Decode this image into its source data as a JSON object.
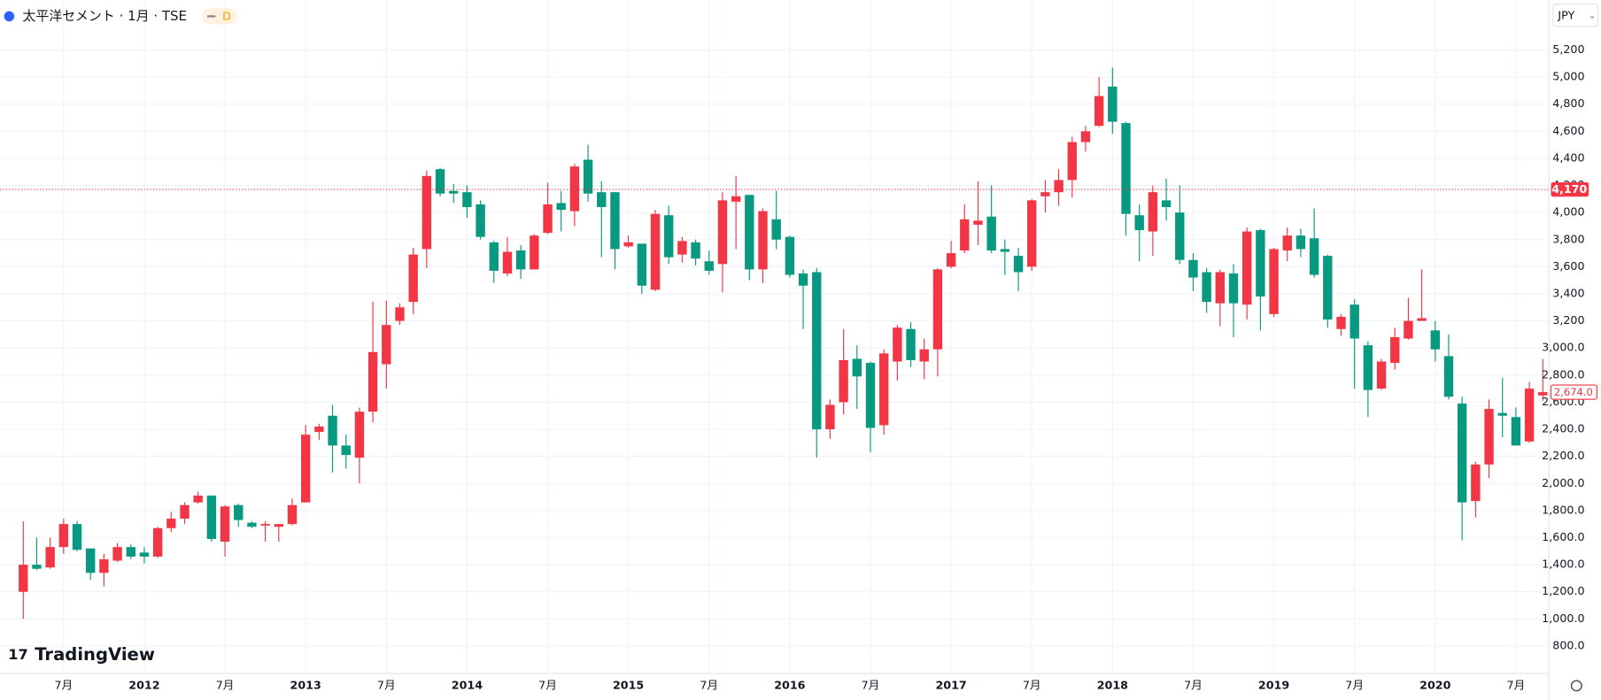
{
  "chart_data": {
    "type": "candlestick",
    "title": "太平洋セメント · 1月 · TSE",
    "badge": "D",
    "currency": "JPY",
    "brand": "TradingView",
    "up_color": "#f23645",
    "down_color": "#089981",
    "x": [
      "2011-04",
      "2011-05",
      "2011-06",
      "2011-07",
      "2011-08",
      "2011-09",
      "2011-10",
      "2011-11",
      "2011-12",
      "2012-01",
      "2012-02",
      "2012-03",
      "2012-04",
      "2012-05",
      "2012-06",
      "2012-07",
      "2012-08",
      "2012-09",
      "2012-10",
      "2012-11",
      "2012-12",
      "2013-01",
      "2013-02",
      "2013-03",
      "2013-04",
      "2013-05",
      "2013-06",
      "2013-07",
      "2013-08",
      "2013-09",
      "2013-10",
      "2013-11",
      "2013-12",
      "2014-01",
      "2014-02",
      "2014-03",
      "2014-04",
      "2014-05",
      "2014-06",
      "2014-07",
      "2014-08",
      "2014-09",
      "2014-10",
      "2014-11",
      "2014-12",
      "2015-01",
      "2015-02",
      "2015-03",
      "2015-04",
      "2015-05",
      "2015-06",
      "2015-07",
      "2015-08",
      "2015-09",
      "2015-10",
      "2015-11",
      "2015-12",
      "2016-01",
      "2016-02",
      "2016-03",
      "2016-04",
      "2016-05",
      "2016-06",
      "2016-07",
      "2016-08",
      "2016-09",
      "2016-10",
      "2016-11",
      "2016-12",
      "2017-01",
      "2017-02",
      "2017-03",
      "2017-04",
      "2017-05",
      "2017-06",
      "2017-07",
      "2017-08",
      "2017-09",
      "2017-10",
      "2017-11",
      "2017-12",
      "2018-01",
      "2018-02",
      "2018-03",
      "2018-04",
      "2018-05",
      "2018-06",
      "2018-07",
      "2018-08",
      "2018-09",
      "2018-10",
      "2018-11",
      "2018-12",
      "2019-01",
      "2019-02",
      "2019-03",
      "2019-04",
      "2019-05",
      "2019-06",
      "2019-07",
      "2019-08",
      "2019-09",
      "2019-10",
      "2019-11",
      "2019-12",
      "2020-01",
      "2020-02",
      "2020-03",
      "2020-04",
      "2020-05",
      "2020-06",
      "2020-07",
      "2020-08",
      "2020-09"
    ],
    "open": [
      1200,
      1400,
      1380,
      1530,
      1700,
      1520,
      1340,
      1430,
      1530,
      1490,
      1460,
      1670,
      1740,
      1860,
      1910,
      1570,
      1840,
      1710,
      1690,
      1680,
      1700,
      1860,
      2380,
      2500,
      2280,
      2190,
      2530,
      2880,
      3200,
      3340,
      3730,
      4320,
      4160,
      4150,
      4060,
      3780,
      3550,
      3720,
      3580,
      3850,
      4070,
      4010,
      4390,
      4150,
      4150,
      3750,
      3770,
      3430,
      3980,
      3690,
      3780,
      3640,
      3620,
      4080,
      4130,
      3580,
      3950,
      3820,
      3550,
      3560,
      2400,
      2600,
      2920,
      2890,
      2430,
      2900,
      3140,
      2900,
      2990,
      3600,
      3720,
      3910,
      3970,
      3730,
      3680,
      3600,
      4120,
      4150,
      4240,
      4520,
      4640,
      4930,
      4660,
      3980,
      3860,
      4090,
      4000,
      3650,
      3560,
      3330,
      3550,
      3320,
      3870,
      3250,
      3720,
      3830,
      3810,
      3680,
      3140,
      3320,
      3020,
      2700,
      2890,
      3070,
      3200,
      3130,
      2940,
      2590,
      1870,
      2140,
      2520,
      2490,
      2310,
      2650
    ],
    "high": [
      1720,
      1600,
      1600,
      1740,
      1720,
      1520,
      1480,
      1560,
      1550,
      1530,
      1680,
      1790,
      1860,
      1940,
      1910,
      1840,
      1850,
      1720,
      1720,
      1700,
      1890,
      2430,
      2440,
      2580,
      2360,
      2560,
      3340,
      3350,
      3330,
      3740,
      4310,
      4330,
      4210,
      4200,
      4090,
      3790,
      3820,
      3760,
      3840,
      4220,
      4160,
      4360,
      4500,
      4230,
      4150,
      3830,
      3770,
      4020,
      4050,
      3820,
      3800,
      3720,
      4150,
      4270,
      4130,
      4030,
      4160,
      3830,
      3580,
      3590,
      2620,
      3140,
      3020,
      2900,
      2990,
      3170,
      3190,
      3070,
      3590,
      3790,
      4060,
      4230,
      4200,
      3800,
      3740,
      4100,
      4240,
      4320,
      4560,
      4640,
      5000,
      5070,
      4670,
      4060,
      4200,
      4250,
      4200,
      3700,
      3590,
      3580,
      3620,
      3890,
      3880,
      3740,
      3890,
      3880,
      4030,
      3690,
      3250,
      3360,
      3050,
      2920,
      3150,
      3370,
      3580,
      3200,
      3100,
      2640,
      2160,
      2620,
      2780,
      2560,
      2750,
      2920
    ],
    "low": [
      1000,
      1360,
      1370,
      1480,
      1500,
      1290,
      1240,
      1420,
      1440,
      1410,
      1450,
      1640,
      1700,
      1850,
      1570,
      1460,
      1680,
      1670,
      1570,
      1570,
      1690,
      1860,
      2320,
      2080,
      2110,
      2000,
      2450,
      2700,
      3170,
      3250,
      3590,
      4120,
      4070,
      3960,
      3800,
      3480,
      3530,
      3510,
      3580,
      3840,
      3860,
      3900,
      4080,
      3670,
      3580,
      3740,
      3400,
      3420,
      3620,
      3630,
      3610,
      3540,
      3410,
      3730,
      3500,
      3480,
      3730,
      3520,
      3140,
      2190,
      2330,
      2510,
      2550,
      2230,
      2360,
      2760,
      2860,
      2770,
      2790,
      3590,
      3700,
      3760,
      3700,
      3540,
      3420,
      3570,
      4000,
      4050,
      4110,
      4450,
      4630,
      4580,
      3830,
      3640,
      3680,
      3940,
      3620,
      3420,
      3260,
      3160,
      3080,
      3210,
      3130,
      3230,
      3640,
      3670,
      3520,
      3150,
      3090,
      2700,
      2490,
      2690,
      2840,
      3060,
      3200,
      2900,
      2620,
      1580,
      1750,
      2040,
      2340,
      2280,
      2300,
      2610
    ],
    "close": [
      1400,
      1370,
      1530,
      1700,
      1510,
      1340,
      1440,
      1530,
      1460,
      1460,
      1670,
      1740,
      1840,
      1910,
      1590,
      1830,
      1730,
      1680,
      1700,
      1700,
      1840,
      2360,
      2420,
      2280,
      2210,
      2530,
      2970,
      3170,
      3300,
      3690,
      4270,
      4140,
      4140,
      4040,
      3820,
      3570,
      3710,
      3580,
      3830,
      4060,
      4020,
      4340,
      4140,
      4040,
      3730,
      3780,
      3460,
      3990,
      3670,
      3790,
      3660,
      3570,
      4090,
      4120,
      3580,
      4010,
      3800,
      3540,
      3460,
      2400,
      2580,
      2910,
      2790,
      2410,
      2960,
      3150,
      2910,
      2990,
      3580,
      3700,
      3950,
      3940,
      3720,
      3710,
      3560,
      4090,
      4150,
      4240,
      4520,
      4600,
      4860,
      4670,
      3990,
      3870,
      4150,
      4040,
      3650,
      3520,
      3340,
      3560,
      3330,
      3860,
      3380,
      3730,
      3830,
      3730,
      3540,
      3210,
      3230,
      3070,
      2690,
      2900,
      3080,
      3200,
      3220,
      2990,
      2640,
      1860,
      2140,
      2550,
      2500,
      2280,
      2700,
      2674
    ],
    "last_label": "2,674.0",
    "marker_line": {
      "value": 4170,
      "label": "4,170"
    },
    "ylim": [
      597,
      5569
    ],
    "yticks": [
      {
        "value": 800,
        "label": "800.0"
      },
      {
        "value": 1000,
        "label": "1,000.0"
      },
      {
        "value": 1200,
        "label": "1,200.0"
      },
      {
        "value": 1400,
        "label": "1,400.0"
      },
      {
        "value": 1600,
        "label": "1,600.0"
      },
      {
        "value": 1800,
        "label": "1,800.0"
      },
      {
        "value": 2000,
        "label": "2,000.0"
      },
      {
        "value": 2200,
        "label": "2,200.0"
      },
      {
        "value": 2400,
        "label": "2,400.0"
      },
      {
        "value": 2600,
        "label": "2,600.0"
      },
      {
        "value": 2800,
        "label": "2,800.0"
      },
      {
        "value": 3000,
        "label": "3,000.0"
      },
      {
        "value": 3200,
        "label": "3,200"
      },
      {
        "value": 3400,
        "label": "3,400"
      },
      {
        "value": 3600,
        "label": "3,600"
      },
      {
        "value": 3800,
        "label": "3,800"
      },
      {
        "value": 4000,
        "label": "4,000"
      },
      {
        "value": 4200,
        "label": "4,200"
      },
      {
        "value": 4400,
        "label": "4,400"
      },
      {
        "value": 4600,
        "label": "4,600"
      },
      {
        "value": 4800,
        "label": "4,800"
      },
      {
        "value": 5000,
        "label": "5,000"
      },
      {
        "value": 5200,
        "label": "5,200"
      }
    ],
    "xticks": [
      {
        "value": "2011-07",
        "label": "7月"
      },
      {
        "value": "2012-01",
        "label": "2012"
      },
      {
        "value": "2012-07",
        "label": "7月"
      },
      {
        "value": "2013-01",
        "label": "2013"
      },
      {
        "value": "2013-07",
        "label": "7月"
      },
      {
        "value": "2014-01",
        "label": "2014"
      },
      {
        "value": "2014-07",
        "label": "7月"
      },
      {
        "value": "2015-01",
        "label": "2015"
      },
      {
        "value": "2015-07",
        "label": "7月"
      },
      {
        "value": "2016-01",
        "label": "2016"
      },
      {
        "value": "2016-07",
        "label": "7月"
      },
      {
        "value": "2017-01",
        "label": "2017"
      },
      {
        "value": "2017-07",
        "label": "7月"
      },
      {
        "value": "2018-01",
        "label": "2018"
      },
      {
        "value": "2018-07",
        "label": "7月"
      },
      {
        "value": "2019-01",
        "label": "2019"
      },
      {
        "value": "2019-07",
        "label": "7月"
      },
      {
        "value": "2020-01",
        "label": "2020"
      },
      {
        "value": "2020-07",
        "label": "7月"
      }
    ],
    "grid": true
  }
}
